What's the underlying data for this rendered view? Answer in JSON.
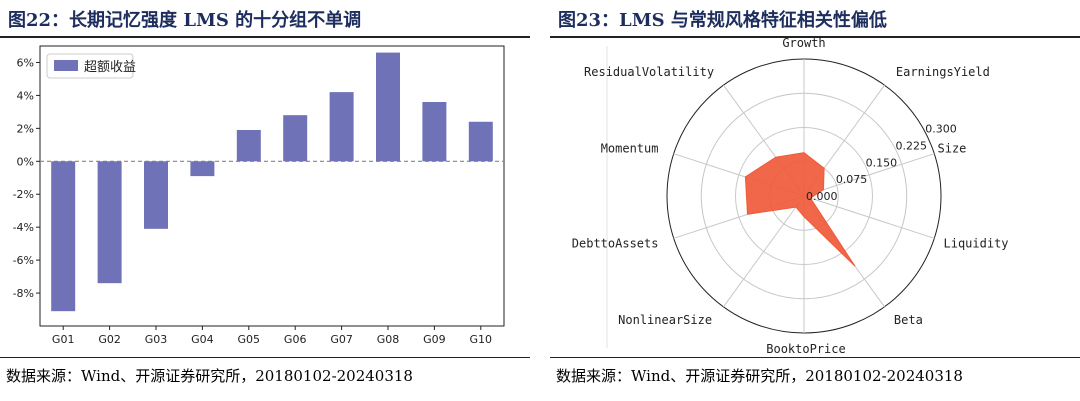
{
  "left": {
    "title": "图22：长期记忆强度 LMS 的十分组不单调",
    "source": "数据来源：Wind、开源证券研究所，20180102-20240318"
  },
  "right": {
    "title": "图23：LMS 与常规风格特征相关性偏低",
    "source": "数据来源：Wind、开源证券研究所，20180102-20240318"
  },
  "chart_data": [
    {
      "type": "bar",
      "categories": [
        "G01",
        "G02",
        "G03",
        "G04",
        "G05",
        "G06",
        "G07",
        "G08",
        "G09",
        "G10"
      ],
      "series": [
        {
          "name": "超额收益",
          "values": [
            -9.1,
            -7.4,
            -4.1,
            -0.9,
            1.9,
            2.8,
            4.2,
            6.6,
            3.6,
            2.4
          ]
        }
      ],
      "y_unit": "%",
      "ylim": [
        -10,
        7
      ],
      "yticks": [
        "-8%",
        "-6%",
        "-4%",
        "-2%",
        "0%",
        "2%",
        "4%",
        "6%"
      ],
      "legend_position": "top-left",
      "color": "#7072b8",
      "zero_line": "dashed"
    },
    {
      "type": "radar",
      "axes": [
        "Size",
        "EarningsYield",
        "Growth",
        "ResidualVolatility",
        "Momentum",
        "DebttoAssets",
        "NonlinearSize",
        "BooktoPrice",
        "Beta",
        "Liquidity"
      ],
      "values": [
        0.045,
        0.075,
        0.095,
        0.105,
        0.135,
        0.13,
        0.03,
        0.045,
        0.19,
        0.015
      ],
      "rlim": [
        0,
        0.3
      ],
      "rticks": [
        "0.000",
        "0.075",
        "0.150",
        "0.225",
        "0.300"
      ],
      "color": "#f05a3a"
    }
  ]
}
